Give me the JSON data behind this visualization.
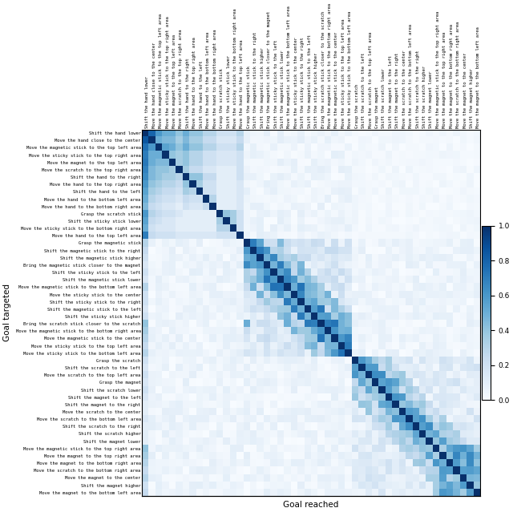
{
  "labels": [
    "Shift the hand lower",
    "Move the hand close to the center",
    "Move the magnetic stick to the top left area",
    "Move the sticky stick to the top right area",
    "Move the magnet to the top left area",
    "Move the scratch to the top right area",
    "Shift the hand to the right",
    "Move the hand to the top right area",
    "Shift the hand to the left",
    "Move the hand to the bottom left area",
    "Move the hand to the bottom right area",
    "Grasp the scratch stick",
    "Shift the sticky stick lower",
    "Move the sticky stick to the bottom right area",
    "Move the hand to the top left area",
    "Grasp the magnetic stick",
    "Shift the magnetic stick to the right",
    "Shift the magnetic stick higher",
    "Bring the magnetic stick closer to the magnet",
    "Shift the sticky stick to the left",
    "Shift the magnetic stick lower",
    "Move the magnetic stick to the bottom left area",
    "Move the sticky stick to the center",
    "Shift the sticky stick to the right",
    "Shift the magnetic stick to the left",
    "Shift the sticky stick higher",
    "Bring the scratch stick closer to the scratch",
    "Move the magnetic stick to the bottom right area",
    "Move the magnetic stick to the center",
    "Move the sticky stick to the top left area",
    "Move the sticky stick to the bottom left area",
    "Grasp the scratch",
    "Shift the scratch to the left",
    "Move the scratch to the top left area",
    "Grasp the magnet",
    "Shift the scratch lower",
    "Shift the magnet to the left",
    "Shift the magnet to the right",
    "Move the scratch to the center",
    "Move the scratch to the bottom left area",
    "Shift the scratch to the right",
    "Shift the scratch higher",
    "Shift the magnet lower",
    "Move the magnetic stick to the top right area",
    "Move the magnet to the top right area",
    "Move the magnet to the bottom right area",
    "Move the scratch to the bottom right area",
    "Move the magnet to the center",
    "Shift the magnet higher",
    "Move the magnet to the bottom left area"
  ],
  "xlabel": "Goal reached",
  "ylabel": "Goal targeted",
  "vmin": 0.0,
  "vmax": 1.0,
  "colorbar_ticks": [
    0.0,
    0.2,
    0.4,
    0.6,
    0.8,
    1.0
  ],
  "figsize": [
    6.4,
    6.39
  ],
  "dpi": 100
}
